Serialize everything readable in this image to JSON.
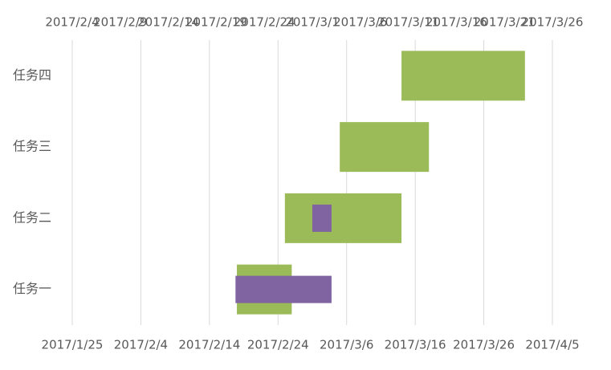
{
  "chart_data": {
    "type": "gantt",
    "categories": [
      "任务一",
      "任务二",
      "任务三",
      "任务四"
    ],
    "series": [
      {
        "color": "#9bbb59",
        "starts": [
          "2017/2/18",
          "2017/2/25",
          "2017/3/5",
          "2017/3/14"
        ],
        "ends": [
          "2017/2/26",
          "2017/3/14",
          "2017/3/18",
          "2017/4/1"
        ]
      },
      {
        "color": "#8064a2",
        "axis": "x2",
        "starts": [
          "2017/2/21",
          "2017/3/1",
          null,
          null
        ],
        "ends": [
          "2017/3/3",
          "2017/3/3",
          null,
          null
        ]
      }
    ],
    "xlim": [
      "2017/1/25",
      "2017/4/5"
    ],
    "xticks": [
      "2017/1/25",
      "2017/2/4",
      "2017/2/14",
      "2017/2/24",
      "2017/3/6",
      "2017/3/16",
      "2017/3/26",
      "2017/4/5"
    ],
    "x2lim": [
      "2017/2/4",
      "2017/3/26"
    ],
    "x2ticks": [
      "2017/2/4",
      "2017/2/9",
      "2017/2/14",
      "2017/2/19",
      "2017/2/24",
      "2017/3/1",
      "2017/3/6",
      "2017/3/11",
      "2017/3/16",
      "2017/3/21",
      "2017/3/26"
    ],
    "grid": true
  }
}
